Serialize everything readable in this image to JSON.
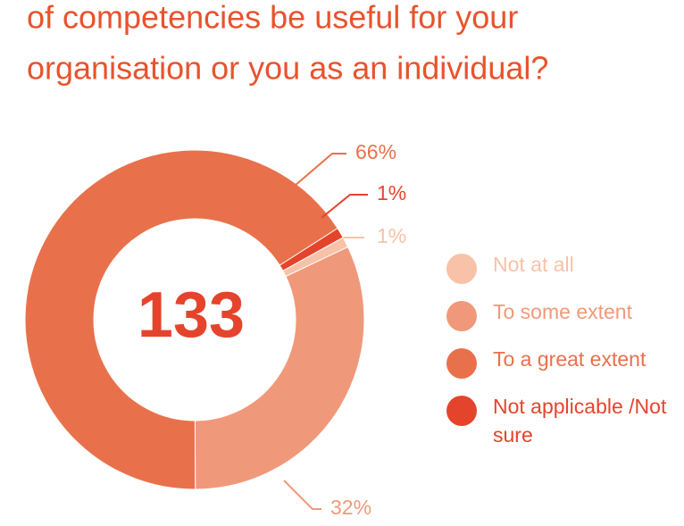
{
  "chart_data": {
    "type": "donut",
    "title": [
      "of competencies be useful for your",
      "organisation or you as an individual?"
    ],
    "center_label": "133",
    "categories": [
      "Not at all",
      "To some extent",
      "To a great extent",
      "Not applicable /Not sure"
    ],
    "values": [
      1,
      32,
      66,
      1
    ],
    "value_labels": [
      "1%",
      "32%",
      "66%",
      "1%"
    ],
    "colors": [
      "#f7c2a8",
      "#f0997a",
      "#e8714c",
      "#e5442c"
    ]
  }
}
